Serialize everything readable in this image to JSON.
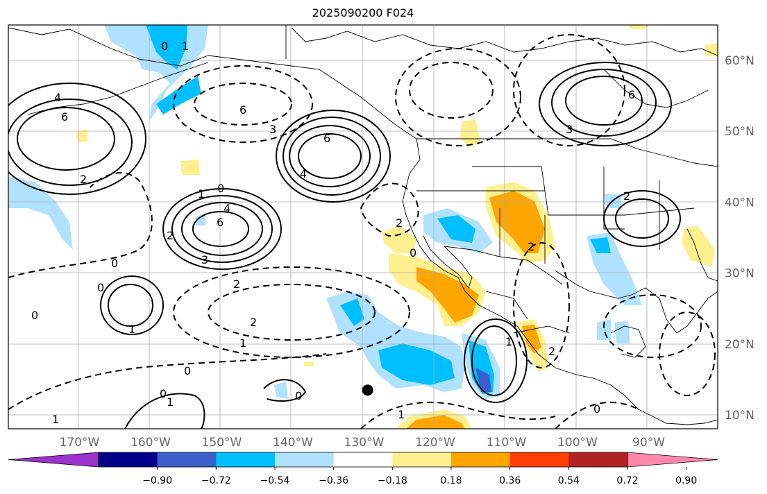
{
  "title": "2025090200 F024",
  "lat_labels": [
    {
      "text": "60°N",
      "value": 60
    },
    {
      "text": "50°N",
      "value": 50
    },
    {
      "text": "40°N",
      "value": 40
    },
    {
      "text": "30°N",
      "value": 30
    },
    {
      "text": "20°N",
      "value": 20
    },
    {
      "text": "10°N",
      "value": 10
    }
  ],
  "lon_labels": [
    {
      "text": "170°W",
      "value": -170
    },
    {
      "text": "160°W",
      "value": -160
    },
    {
      "text": "150°W",
      "value": -150
    },
    {
      "text": "140°W",
      "value": -140
    },
    {
      "text": "130°W",
      "value": -130
    },
    {
      "text": "120°W",
      "value": -120
    },
    {
      "text": "110°W",
      "value": -110
    },
    {
      "text": "100°W",
      "value": -100
    },
    {
      "text": "90°W",
      "value": -90
    }
  ],
  "colorbar": {
    "colors": [
      "#9a32cd",
      "#00008b",
      "#3a5fcd",
      "#00bfff",
      "#b0e2ff",
      "#ffffff",
      "#fff08f",
      "#ffa500",
      "#ff3e00",
      "#b22222",
      "#ff88aa"
    ],
    "tick_labels": [
      "−0.90",
      "−0.72",
      "−0.54",
      "−0.36",
      "−0.18",
      "0.18",
      "0.36",
      "0.54",
      "0.72",
      "0.90"
    ],
    "ticks": [
      -0.9,
      -0.72,
      -0.54,
      -0.36,
      -0.18,
      0.18,
      0.36,
      0.54,
      0.72,
      0.9
    ]
  },
  "contour_labels": [
    "0",
    "1",
    "4",
    "6",
    "2",
    "6",
    "3",
    "6",
    "1",
    "0",
    "4",
    "6",
    "2",
    "3",
    "0",
    "0",
    "0",
    "2",
    "1",
    "2",
    "1",
    "0",
    "0",
    "1",
    "0",
    "1",
    "2",
    "4",
    "6",
    "3",
    "2",
    "0",
    "2",
    "1",
    "2",
    "0",
    "1"
  ],
  "marker": {
    "lon": -129.5,
    "lat": 13.5
  },
  "colors": {
    "contour": "#000000",
    "grid": "#aaaaaa",
    "coast": "#000000"
  }
}
